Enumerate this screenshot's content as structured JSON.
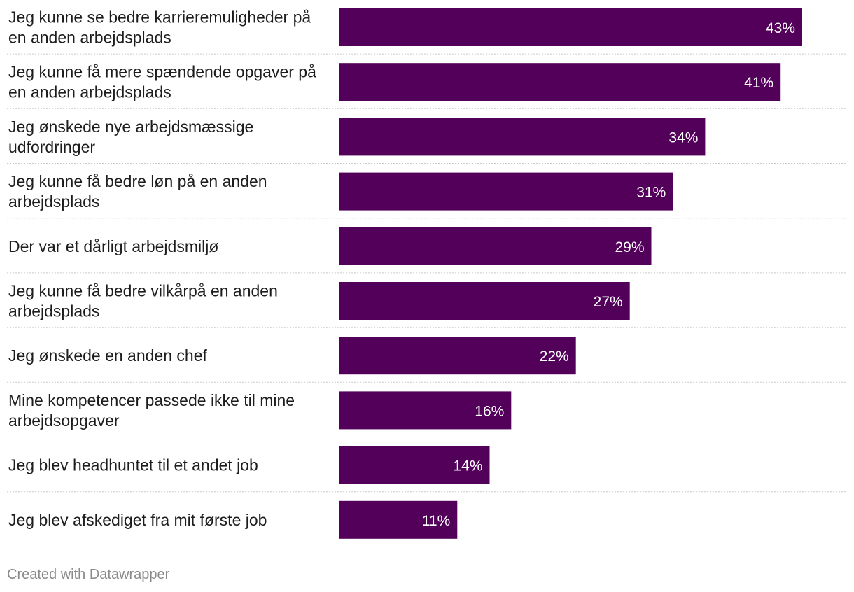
{
  "chart_data": {
    "type": "bar",
    "orientation": "horizontal",
    "categories": [
      [
        "Jeg kunne se bedre karrieremuligheder på",
        "en anden arbejdsplads"
      ],
      [
        "Jeg kunne få mere spændende opgaver på",
        "en anden arbejdsplads"
      ],
      [
        "Jeg ønskede nye arbejdsmæssige",
        "udfordringer"
      ],
      [
        "Jeg kunne få bedre løn på en anden",
        "arbejdsplads"
      ],
      [
        "Der var et dårligt arbejdsmiljø"
      ],
      [
        "Jeg kunne få bedre vilkårpå en anden",
        "arbejdsplads"
      ],
      [
        "Jeg ønskede en anden chef"
      ],
      [
        "Mine kompetencer passede ikke til mine",
        "arbejdsopgaver"
      ],
      [
        "Jeg blev headhuntet til et andet job"
      ],
      [
        "Jeg blev afskediget fra mit første job"
      ]
    ],
    "values": [
      43,
      41,
      34,
      31,
      29,
      27,
      22,
      16,
      14,
      11
    ],
    "value_suffix": "%",
    "xlim": [
      0,
      48
    ],
    "bar_color": "#52005a",
    "value_label_color": "#ffffff",
    "title": "",
    "xlabel": "",
    "ylabel": ""
  },
  "footer": {
    "credit": "Created with Datawrapper"
  }
}
